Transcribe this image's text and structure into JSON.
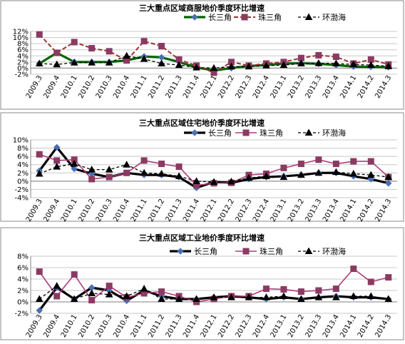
{
  "chart_data": [
    {
      "type": "line",
      "title": "三大重点区域商服地价季度环比增速",
      "categories": [
        "2009.3",
        "2009.4",
        "2010.1",
        "2010.2",
        "2010.3",
        "2010.4",
        "2011.1",
        "2011.2",
        "2011.3",
        "2011.4",
        "2012.1",
        "2012.2",
        "2012.3",
        "2012.4",
        "2013.1",
        "2013.2",
        "2013.3",
        "2013.4",
        "2014.1",
        "2014.2",
        "2014.3"
      ],
      "ylim": [
        -2,
        12
      ],
      "yticks": [
        -2,
        0,
        2,
        4,
        6,
        8,
        10,
        12
      ],
      "ytick_labels": [
        "-2%",
        "0%",
        "2%",
        "4%",
        "6%",
        "8%",
        "10%",
        "12%"
      ],
      "legend_position": "top",
      "grid": "horizontal",
      "series": [
        {
          "name": "长三角",
          "color": "#006400",
          "style": "solid-thick",
          "marker": "diamond",
          "marker_color": "#4a6fb5",
          "values": [
            1.5,
            5.0,
            2.0,
            2.0,
            2.0,
            2.5,
            3.8,
            3.5,
            2.0,
            0.2,
            -0.8,
            0.0,
            0.7,
            1.0,
            1.5,
            1.6,
            1.4,
            1.0,
            0.5,
            0.4,
            0.3
          ]
        },
        {
          "name": "珠三角",
          "color": "#993333",
          "style": "dashed",
          "marker": "square",
          "marker_color": "#8b3a62",
          "values": [
            11.0,
            5.0,
            8.5,
            6.5,
            5.5,
            2.5,
            8.8,
            7.2,
            2.8,
            0.8,
            -1.5,
            2.0,
            0.8,
            1.5,
            2.0,
            3.3,
            4.2,
            3.7,
            1.5,
            2.8,
            1.2
          ]
        },
        {
          "name": "环渤海",
          "color": "#000000",
          "style": "dashed-thin",
          "marker": "triangle",
          "marker_color": "#000000",
          "values": [
            1.5,
            1.2,
            1.8,
            1.8,
            1.8,
            4.0,
            3.0,
            1.5,
            1.0,
            0.2,
            0.0,
            0.5,
            0.5,
            0.8,
            1.0,
            1.5,
            1.6,
            1.5,
            1.2,
            1.0,
            0.6
          ]
        }
      ]
    },
    {
      "type": "line",
      "title": "三大重点区域住宅地价季度环比增速",
      "categories": [
        "2009.3",
        "2009.4",
        "2010.1",
        "2010.2",
        "2010.3",
        "2010.4",
        "2011.1",
        "2011.2",
        "2011.3",
        "2011.4",
        "2012.1",
        "2012.2",
        "2012.3",
        "2012.4",
        "2013.1",
        "2013.2",
        "2013.3",
        "2013.4",
        "2014.1",
        "2014.2",
        "2014.3"
      ],
      "ylim": [
        -4,
        10
      ],
      "yticks": [
        -4,
        -2,
        0,
        2,
        4,
        6,
        8,
        10
      ],
      "ytick_labels": [
        "-4%",
        "-2%",
        "0%",
        "2%",
        "4%",
        "6%",
        "8%",
        "10%"
      ],
      "legend_position": "top",
      "grid": "horizontal",
      "series": [
        {
          "name": "长三角",
          "color": "#000000",
          "style": "solid-thick",
          "marker": "diamond",
          "marker_color": "#4a6fb5",
          "values": [
            2.5,
            8.2,
            3.0,
            1.8,
            1.0,
            2.0,
            1.5,
            1.5,
            1.0,
            -1.6,
            -0.2,
            -0.4,
            0.5,
            1.0,
            1.2,
            1.5,
            2.0,
            2.0,
            1.2,
            0.5,
            -0.5
          ]
        },
        {
          "name": "珠三角",
          "color": "#b03a7a",
          "style": "solid",
          "marker": "square",
          "marker_color": "#8b3a62",
          "values": [
            6.5,
            5.0,
            5.2,
            0.5,
            1.0,
            2.0,
            5.0,
            4.2,
            3.5,
            -1.0,
            -0.5,
            -0.4,
            1.5,
            1.8,
            3.2,
            4.2,
            5.2,
            4.2,
            4.8,
            4.8,
            1.0
          ]
        },
        {
          "name": "环渤海",
          "color": "#000000",
          "style": "dashed-thin",
          "marker": "triangle",
          "marker_color": "#000000",
          "values": [
            1.8,
            3.5,
            4.2,
            2.8,
            2.8,
            4.0,
            2.0,
            1.8,
            1.2,
            0.0,
            -0.2,
            -0.1,
            0.8,
            1.2,
            1.0,
            1.5,
            2.0,
            2.2,
            1.8,
            1.5,
            1.0
          ]
        }
      ]
    },
    {
      "type": "line",
      "title": "三大重点区域工业地价季度环比增速",
      "categories": [
        "2009.3",
        "2009.4",
        "2010.1",
        "2010.2",
        "2010.3",
        "2010.4",
        "2011.1",
        "2011.2",
        "2011.3",
        "2011.4",
        "2012.1",
        "2012.2",
        "2012.3",
        "2012.4",
        "2013.1",
        "2013.2",
        "2013.3",
        "2013.4",
        "2014.1",
        "2014.2",
        "2014.3"
      ],
      "ylim": [
        -2,
        8
      ],
      "yticks": [
        -2,
        0,
        2,
        4,
        6,
        8
      ],
      "ytick_labels": [
        "-2%",
        "0%",
        "2%",
        "4%",
        "6%",
        "8%"
      ],
      "legend_position": "top",
      "grid": "horizontal",
      "series": [
        {
          "name": "长三角",
          "color": "#000000",
          "style": "solid-thick",
          "marker": "diamond",
          "marker_color": "#4a6fb5",
          "values": [
            -1.5,
            2.5,
            0.5,
            2.5,
            2.0,
            0.2,
            2.0,
            1.0,
            0.5,
            0.5,
            0.8,
            1.0,
            0.8,
            0.5,
            0.8,
            0.5,
            0.8,
            1.0,
            0.8,
            0.8,
            0.5
          ]
        },
        {
          "name": "珠三角",
          "color": "#b03a7a",
          "style": "solid",
          "marker": "square",
          "marker_color": "#8b3a62",
          "values": [
            5.3,
            1.0,
            4.8,
            0.3,
            2.8,
            0.8,
            1.5,
            1.8,
            1.0,
            0.0,
            0.5,
            1.0,
            1.0,
            2.3,
            2.2,
            1.8,
            2.0,
            2.3,
            5.8,
            3.5,
            4.3
          ]
        },
        {
          "name": "环渤海",
          "color": "#000000",
          "style": "dashed-thin",
          "marker": "triangle",
          "marker_color": "#000000",
          "values": [
            0.5,
            2.8,
            0.5,
            1.5,
            1.3,
            1.0,
            2.3,
            0.5,
            0.5,
            0.5,
            0.8,
            0.8,
            0.8,
            0.8,
            1.0,
            0.5,
            0.8,
            0.8,
            1.0,
            1.0,
            0.5
          ]
        }
      ]
    }
  ]
}
